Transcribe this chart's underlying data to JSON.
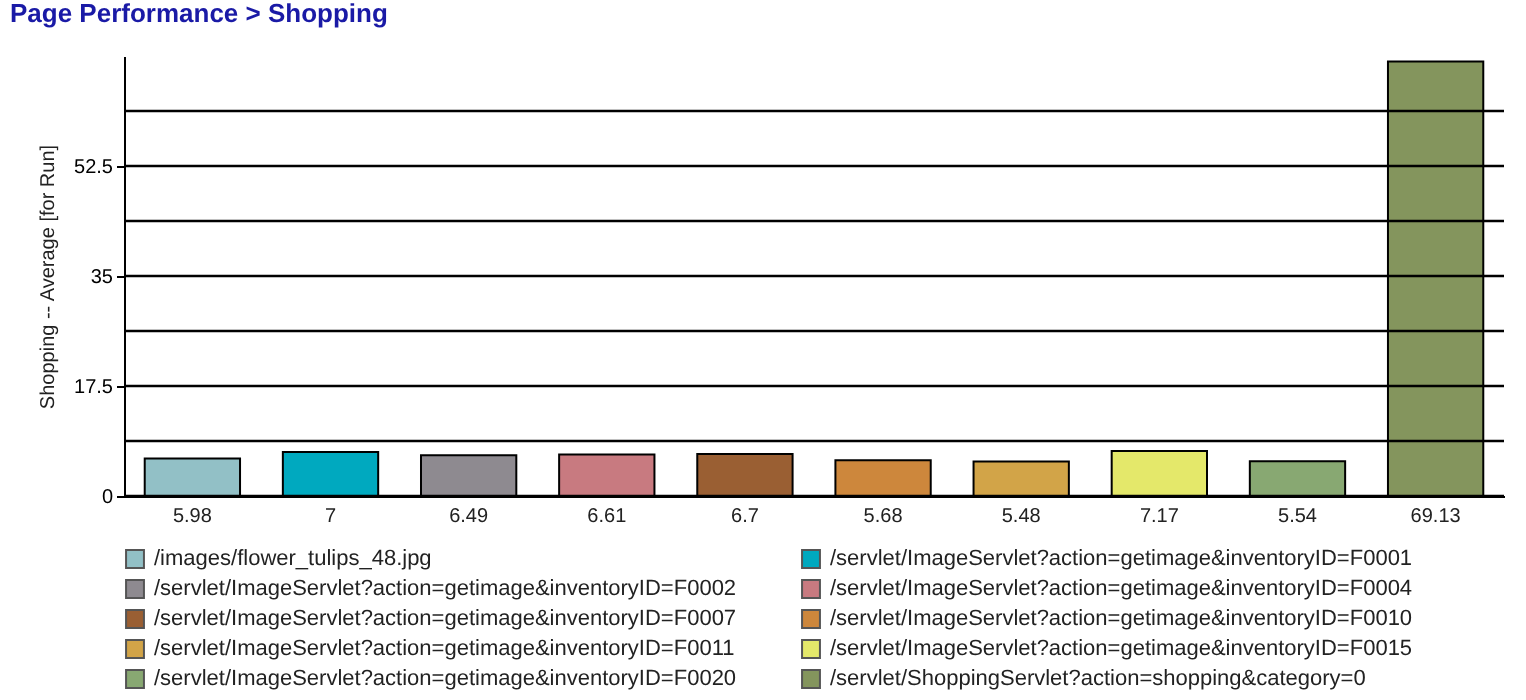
{
  "chart_data": {
    "type": "bar",
    "title": "Page Performance > Shopping",
    "ylabel": "Shopping -- Average [for Run]",
    "categories": [
      null,
      null,
      null,
      null,
      null,
      null,
      null,
      null,
      null,
      null
    ],
    "series": [
      {
        "name": "/images/flower_tulips_48.jpg",
        "color": "#92c0c6",
        "values": [
          5.98,
          null,
          null,
          null,
          null,
          null,
          null,
          null,
          null,
          null
        ]
      },
      {
        "name": "/servlet/ImageServlet?action=getimage&inventoryID=F0001",
        "color": "#00a9bf",
        "values": [
          null,
          7,
          null,
          null,
          null,
          null,
          null,
          null,
          null,
          null
        ]
      },
      {
        "name": "/servlet/ImageServlet?action=getimage&inventoryID=F0002",
        "color": "#8e8a90",
        "values": [
          null,
          null,
          6.49,
          null,
          null,
          null,
          null,
          null,
          null,
          null
        ]
      },
      {
        "name": "/servlet/ImageServlet?action=getimage&inventoryID=F0004",
        "color": "#c87a80",
        "values": [
          null,
          null,
          null,
          6.61,
          null,
          null,
          null,
          null,
          null,
          null
        ]
      },
      {
        "name": "/servlet/ImageServlet?action=getimage&inventoryID=F0007",
        "color": "#9a5f33",
        "values": [
          null,
          null,
          null,
          null,
          6.7,
          null,
          null,
          null,
          null,
          null
        ]
      },
      {
        "name": "/servlet/ImageServlet?action=getimage&inventoryID=F0010",
        "color": "#cd873c",
        "values": [
          null,
          null,
          null,
          null,
          null,
          5.68,
          null,
          null,
          null,
          null
        ]
      },
      {
        "name": "/servlet/ImageServlet?action=getimage&inventoryID=F0011",
        "color": "#d2a448",
        "values": [
          null,
          null,
          null,
          null,
          null,
          null,
          5.48,
          null,
          null,
          null
        ]
      },
      {
        "name": "/servlet/ImageServlet?action=getimage&inventoryID=F0015",
        "color": "#e4e86a",
        "values": [
          null,
          null,
          null,
          null,
          null,
          null,
          null,
          7.17,
          null,
          null
        ]
      },
      {
        "name": "/servlet/ImageServlet?action=getimage&inventoryID=F0020",
        "color": "#88a872",
        "values": [
          null,
          null,
          null,
          null,
          null,
          null,
          null,
          null,
          5.54,
          null
        ]
      },
      {
        "name": "/servlet/ShoppingServlet?action=shopping&category=0",
        "color": "#84955d",
        "values": [
          null,
          null,
          null,
          null,
          null,
          null,
          null,
          null,
          null,
          69.13
        ]
      }
    ],
    "ylim": [
      0,
      70
    ],
    "yticks": [
      0,
      {
        "value": 8.75,
        "label": null
      },
      17.5,
      {
        "value": 26.25,
        "label": null
      },
      35,
      {
        "value": 43.75,
        "label": null
      },
      52.5,
      {
        "value": 61.25,
        "label": null
      }
    ],
    "grid": "y",
    "legend": "bottom",
    "data_labels": true,
    "tick_labels": "y"
  }
}
